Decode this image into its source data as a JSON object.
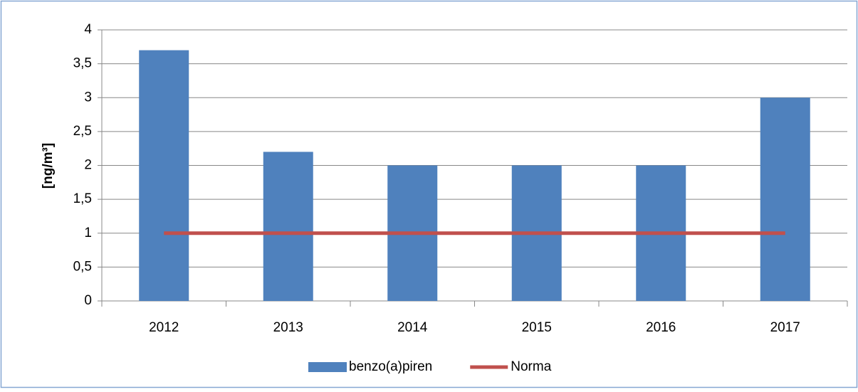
{
  "chart_data": {
    "type": "bar",
    "ylabel": "[ng/m³]",
    "categories": [
      "2012",
      "2013",
      "2014",
      "2015",
      "2016",
      "2017"
    ],
    "series": [
      {
        "name": "benzo(a)piren",
        "type": "bar",
        "color": "#4f81bd",
        "values": [
          3.7,
          2.2,
          2,
          2,
          2,
          3
        ]
      },
      {
        "name": "Norma",
        "type": "line",
        "color": "#c0504d",
        "values": [
          1,
          1,
          1,
          1,
          1,
          1
        ]
      }
    ],
    "ylim": [
      0,
      4
    ],
    "yticks": [
      0,
      {
        "value": 0.5,
        "label": "0,5"
      },
      1,
      {
        "value": 1.5,
        "label": "1,5"
      },
      2,
      {
        "value": 2.5,
        "label": "2,5"
      },
      3,
      {
        "value": 3.5,
        "label": "3,5"
      },
      4
    ],
    "grid": true,
    "legend": "bottom"
  }
}
